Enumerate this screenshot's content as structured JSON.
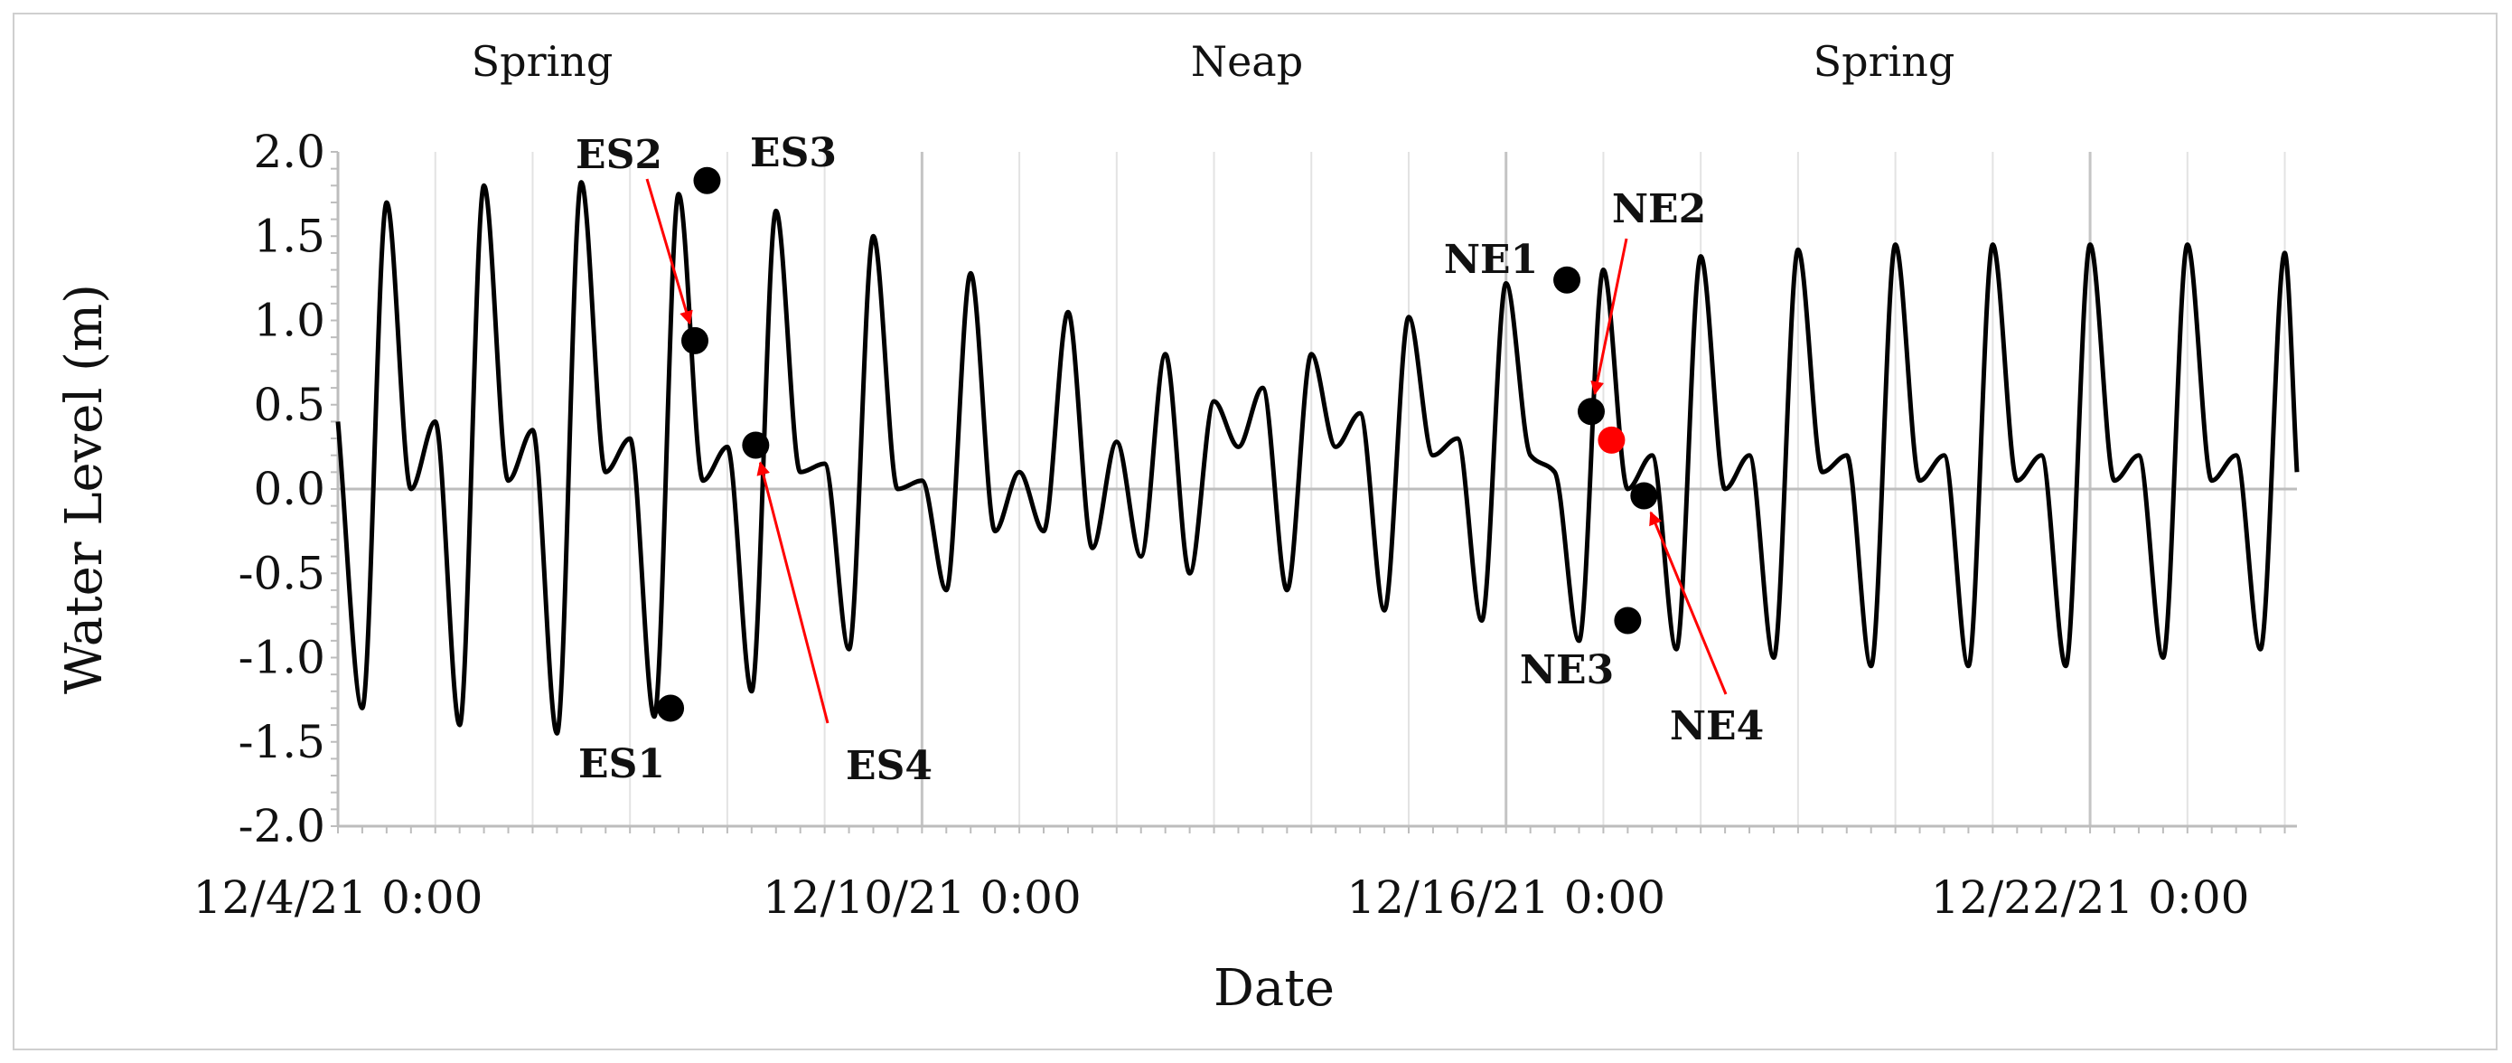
{
  "chart_data": {
    "type": "line",
    "xlabel": "Date",
    "ylabel": "Water Level (m)",
    "ylim": [
      -2.0,
      2.0
    ],
    "yticks": [
      "2.0",
      "1.5",
      "1.0",
      "0.5",
      "0.0",
      "-0.5",
      "-1.0",
      "-1.5",
      "-2.0"
    ],
    "xlim": [
      "12/4/21 0:00",
      "12/24/21 3:00"
    ],
    "xtick_labels": [
      "12/4/21 0:00",
      "12/10/21 0:00",
      "12/16/21 0:00",
      "12/22/21 0:00"
    ],
    "grid": "vertical lines, daily; major every 6 days",
    "phases": [
      "Spring",
      "Neap",
      "Spring"
    ],
    "line_color": "#000000",
    "series": [
      {
        "x": [
          "12/4/21 0:00",
          "12/4/21 6:00",
          "12/4/21 12:00",
          "12/4/21 18:00",
          "12/5/21 0:00",
          "12/5/21 6:00",
          "12/5/21 12:00",
          "12/5/21 18:00",
          "12/6/21 0:00",
          "12/6/21 6:00",
          "12/6/21 12:00",
          "12/6/21 18:00",
          "12/7/21 0:00",
          "12/7/21 6:00",
          "12/7/21 12:00",
          "12/7/21 18:00",
          "12/8/21 0:00",
          "12/8/21 6:00",
          "12/8/21 12:00",
          "12/8/21 18:00",
          "12/9/21 0:00",
          "12/9/21 6:00",
          "12/9/21 12:00",
          "12/9/21 18:00",
          "12/10/21 0:00",
          "12/10/21 6:00",
          "12/10/21 12:00",
          "12/10/21 18:00",
          "12/11/21 0:00",
          "12/11/21 6:00",
          "12/11/21 12:00",
          "12/11/21 18:00",
          "12/12/21 0:00",
          "12/12/21 6:00",
          "12/12/21 12:00",
          "12/12/21 18:00",
          "12/13/21 0:00",
          "12/13/21 6:00",
          "12/13/21 12:00",
          "12/13/21 18:00",
          "12/14/21 0:00",
          "12/14/21 6:00",
          "12/14/21 12:00",
          "12/14/21 18:00",
          "12/15/21 0:00",
          "12/15/21 6:00",
          "12/15/21 12:00",
          "12/15/21 18:00",
          "12/16/21 0:00",
          "12/16/21 6:00",
          "12/16/21 12:00",
          "12/16/21 18:00",
          "12/17/21 0:00",
          "12/17/21 6:00",
          "12/17/21 12:00",
          "12/17/21 18:00",
          "12/18/21 0:00",
          "12/18/21 6:00",
          "12/18/21 12:00",
          "12/18/21 18:00",
          "12/19/21 0:00",
          "12/19/21 6:00",
          "12/19/21 12:00",
          "12/19/21 18:00",
          "12/20/21 0:00",
          "12/20/21 6:00",
          "12/20/21 12:00",
          "12/20/21 18:00",
          "12/21/21 0:00",
          "12/21/21 6:00",
          "12/21/21 12:00",
          "12/21/21 18:00",
          "12/22/21 0:00",
          "12/22/21 6:00",
          "12/22/21 12:00",
          "12/22/21 18:00",
          "12/23/21 0:00",
          "12/23/21 6:00",
          "12/23/21 12:00",
          "12/23/21 18:00",
          "12/24/21 0:00",
          "12/24/21 3:00"
        ],
        "y": [
          0.4,
          -1.3,
          1.7,
          0.0,
          0.4,
          -1.4,
          1.8,
          0.05,
          0.35,
          -1.45,
          1.82,
          0.1,
          0.3,
          -1.35,
          1.75,
          0.05,
          0.25,
          -1.2,
          1.65,
          0.1,
          0.15,
          -0.95,
          1.5,
          0.0,
          0.05,
          -0.6,
          1.28,
          -0.25,
          0.1,
          -0.25,
          1.05,
          -0.35,
          0.28,
          -0.4,
          0.8,
          -0.5,
          0.52,
          0.25,
          0.6,
          -0.6,
          0.8,
          0.25,
          0.45,
          -0.72,
          1.02,
          0.2,
          0.3,
          -0.78,
          1.22,
          0.2,
          0.1,
          -0.9,
          1.3,
          0.0,
          0.2,
          -0.95,
          1.38,
          0.0,
          0.2,
          -1.0,
          1.42,
          0.1,
          0.2,
          -1.05,
          1.45,
          0.05,
          0.2,
          -1.05,
          1.45,
          0.05,
          0.2,
          -1.05,
          1.45,
          0.05,
          0.2,
          -1.0,
          1.45,
          0.05,
          0.2,
          -0.95,
          1.4,
          0.1
        ]
      }
    ],
    "points": [
      {
        "label": "ES1",
        "x": "12/7/21 10:00",
        "y": -1.3,
        "color": "#000000"
      },
      {
        "label": "ES2",
        "x": "12/7/21 16:00",
        "y": 0.88,
        "color": "#000000"
      },
      {
        "label": "ES3",
        "x": "12/7/21 19:00",
        "y": 1.83,
        "color": "#000000"
      },
      {
        "label": "ES4",
        "x": "12/8/21 7:00",
        "y": 0.26,
        "color": "#000000"
      },
      {
        "label": "NE1",
        "x": "12/16/21 15:00",
        "y": 1.24,
        "color": "#000000"
      },
      {
        "label": "NE2",
        "x": "12/16/21 21:00",
        "y": 0.46,
        "color": "#000000"
      },
      {
        "label": "",
        "x": "12/17/21 2:00",
        "y": 0.29,
        "color": "#ff0000"
      },
      {
        "label": "NE3",
        "x": "12/17/21 6:00",
        "y": -0.78,
        "color": "#000000"
      },
      {
        "label": "NE4",
        "x": "12/17/21 10:00",
        "y": -0.04,
        "color": "#000000"
      }
    ],
    "annotations": [
      {
        "text": "ES1"
      },
      {
        "text": "ES2",
        "arrow_color": "#ff0000"
      },
      {
        "text": "ES3"
      },
      {
        "text": "ES4",
        "arrow_color": "#ff0000"
      },
      {
        "text": "NE1"
      },
      {
        "text": "NE2",
        "arrow_color": "#ff0000"
      },
      {
        "text": "NE3"
      },
      {
        "text": "NE4",
        "arrow_color": "#ff0000"
      }
    ]
  }
}
